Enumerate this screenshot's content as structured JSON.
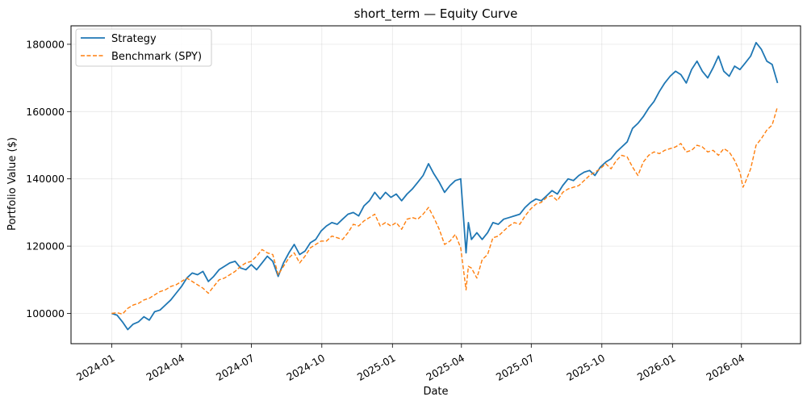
{
  "chart_data": {
    "type": "line",
    "title": "short_term — Equity Curve",
    "xlabel": "Date",
    "ylabel": "Portfolio Value ($)",
    "x_range": [
      "2023-11-09",
      "2026-06-17"
    ],
    "ylim": [
      91000,
      185500
    ],
    "x_ticks": [
      "2024-01",
      "2024-04",
      "2024-07",
      "2024-10",
      "2025-01",
      "2025-04",
      "2025-07",
      "2025-10",
      "2026-01",
      "2026-04"
    ],
    "y_ticks": [
      100000,
      120000,
      140000,
      160000,
      180000
    ],
    "y_tick_labels": [
      "100000",
      "120000",
      "140000",
      "160000",
      "180000"
    ],
    "grid": true,
    "legend_position": "top-left",
    "series": [
      {
        "name": "Strategy",
        "color": "#1f77b4",
        "style": "solid",
        "points": [
          [
            "2024-01-01",
            100000
          ],
          [
            "2024-01-08",
            99500
          ],
          [
            "2024-01-15",
            97500
          ],
          [
            "2024-01-22",
            95200
          ],
          [
            "2024-01-29",
            96800
          ],
          [
            "2024-02-05",
            97500
          ],
          [
            "2024-02-12",
            99000
          ],
          [
            "2024-02-19",
            98000
          ],
          [
            "2024-02-26",
            100500
          ],
          [
            "2024-03-04",
            101000
          ],
          [
            "2024-03-11",
            102500
          ],
          [
            "2024-03-18",
            104000
          ],
          [
            "2024-03-25",
            106000
          ],
          [
            "2024-04-01",
            108000
          ],
          [
            "2024-04-08",
            110500
          ],
          [
            "2024-04-15",
            112000
          ],
          [
            "2024-04-22",
            111500
          ],
          [
            "2024-04-29",
            112500
          ],
          [
            "2024-05-06",
            109500
          ],
          [
            "2024-05-13",
            111000
          ],
          [
            "2024-05-20",
            113000
          ],
          [
            "2024-05-27",
            114000
          ],
          [
            "2024-06-03",
            115000
          ],
          [
            "2024-06-10",
            115500
          ],
          [
            "2024-06-17",
            113500
          ],
          [
            "2024-06-24",
            113000
          ],
          [
            "2024-07-01",
            114500
          ],
          [
            "2024-07-08",
            113000
          ],
          [
            "2024-07-15",
            115000
          ],
          [
            "2024-07-22",
            117000
          ],
          [
            "2024-07-29",
            115500
          ],
          [
            "2024-08-05",
            111000
          ],
          [
            "2024-08-12",
            115000
          ],
          [
            "2024-08-19",
            118000
          ],
          [
            "2024-08-26",
            120500
          ],
          [
            "2024-09-02",
            117500
          ],
          [
            "2024-09-09",
            118500
          ],
          [
            "2024-09-16",
            121000
          ],
          [
            "2024-09-23",
            122000
          ],
          [
            "2024-09-30",
            124500
          ],
          [
            "2024-10-07",
            126000
          ],
          [
            "2024-10-14",
            127000
          ],
          [
            "2024-10-21",
            126500
          ],
          [
            "2024-10-28",
            128000
          ],
          [
            "2024-11-04",
            129500
          ],
          [
            "2024-11-11",
            130000
          ],
          [
            "2024-11-18",
            129000
          ],
          [
            "2024-11-25",
            132000
          ],
          [
            "2024-12-02",
            133500
          ],
          [
            "2024-12-09",
            136000
          ],
          [
            "2024-12-16",
            134000
          ],
          [
            "2024-12-23",
            136000
          ],
          [
            "2024-12-30",
            134500
          ],
          [
            "2025-01-06",
            135500
          ],
          [
            "2025-01-13",
            133500
          ],
          [
            "2025-01-20",
            135500
          ],
          [
            "2025-01-27",
            137000
          ],
          [
            "2025-02-03",
            139000
          ],
          [
            "2025-02-10",
            141000
          ],
          [
            "2025-02-17",
            144500
          ],
          [
            "2025-02-24",
            141500
          ],
          [
            "2025-03-03",
            139000
          ],
          [
            "2025-03-10",
            136000
          ],
          [
            "2025-03-17",
            138000
          ],
          [
            "2025-03-24",
            139500
          ],
          [
            "2025-03-31",
            140000
          ],
          [
            "2025-04-07",
            118000
          ],
          [
            "2025-04-10",
            127000
          ],
          [
            "2025-04-14",
            122000
          ],
          [
            "2025-04-21",
            124000
          ],
          [
            "2025-04-28",
            122000
          ],
          [
            "2025-05-05",
            124000
          ],
          [
            "2025-05-12",
            127000
          ],
          [
            "2025-05-19",
            126500
          ],
          [
            "2025-05-26",
            128000
          ],
          [
            "2025-06-02",
            128500
          ],
          [
            "2025-06-09",
            129000
          ],
          [
            "2025-06-16",
            129500
          ],
          [
            "2025-06-23",
            131500
          ],
          [
            "2025-06-30",
            133000
          ],
          [
            "2025-07-07",
            134000
          ],
          [
            "2025-07-14",
            133500
          ],
          [
            "2025-07-21",
            135000
          ],
          [
            "2025-07-28",
            136500
          ],
          [
            "2025-08-04",
            135500
          ],
          [
            "2025-08-11",
            138000
          ],
          [
            "2025-08-18",
            140000
          ],
          [
            "2025-08-25",
            139500
          ],
          [
            "2025-09-01",
            141000
          ],
          [
            "2025-09-08",
            142000
          ],
          [
            "2025-09-15",
            142500
          ],
          [
            "2025-09-22",
            141000
          ],
          [
            "2025-09-29",
            143500
          ],
          [
            "2025-10-06",
            145000
          ],
          [
            "2025-10-13",
            146000
          ],
          [
            "2025-10-20",
            148000
          ],
          [
            "2025-10-27",
            149500
          ],
          [
            "2025-11-03",
            151000
          ],
          [
            "2025-11-10",
            155000
          ],
          [
            "2025-11-17",
            156500
          ],
          [
            "2025-11-24",
            158500
          ],
          [
            "2025-12-01",
            161000
          ],
          [
            "2025-12-08",
            163000
          ],
          [
            "2025-12-15",
            166000
          ],
          [
            "2025-12-22",
            168500
          ],
          [
            "2025-12-29",
            170500
          ],
          [
            "2026-01-05",
            172000
          ],
          [
            "2026-01-12",
            171000
          ],
          [
            "2026-01-19",
            168500
          ],
          [
            "2026-01-26",
            172500
          ],
          [
            "2026-02-02",
            175000
          ],
          [
            "2026-02-09",
            172000
          ],
          [
            "2026-02-16",
            170000
          ],
          [
            "2026-02-23",
            173000
          ],
          [
            "2026-03-02",
            176500
          ],
          [
            "2026-03-09",
            172000
          ],
          [
            "2026-03-16",
            170500
          ],
          [
            "2026-03-23",
            173500
          ],
          [
            "2026-03-30",
            172500
          ],
          [
            "2026-04-06",
            174500
          ],
          [
            "2026-04-13",
            176500
          ],
          [
            "2026-04-20",
            180500
          ],
          [
            "2026-04-27",
            178500
          ],
          [
            "2026-05-04",
            175000
          ],
          [
            "2026-05-11",
            174000
          ],
          [
            "2026-05-18",
            168500
          ]
        ]
      },
      {
        "name": "Benchmark (SPY)",
        "color": "#ff7f0e",
        "style": "dashed",
        "points": [
          [
            "2024-01-01",
            100000
          ],
          [
            "2024-01-08",
            100200
          ],
          [
            "2024-01-15",
            99800
          ],
          [
            "2024-01-22",
            101500
          ],
          [
            "2024-01-29",
            102500
          ],
          [
            "2024-02-05",
            103000
          ],
          [
            "2024-02-12",
            104000
          ],
          [
            "2024-02-19",
            104500
          ],
          [
            "2024-02-26",
            105500
          ],
          [
            "2024-03-04",
            106500
          ],
          [
            "2024-03-11",
            107000
          ],
          [
            "2024-03-18",
            108000
          ],
          [
            "2024-03-25",
            108500
          ],
          [
            "2024-04-01",
            109500
          ],
          [
            "2024-04-08",
            110500
          ],
          [
            "2024-04-15",
            109500
          ],
          [
            "2024-04-22",
            108500
          ],
          [
            "2024-04-29",
            107500
          ],
          [
            "2024-05-06",
            106000
          ],
          [
            "2024-05-13",
            108000
          ],
          [
            "2024-05-20",
            110000
          ],
          [
            "2024-05-27",
            110500
          ],
          [
            "2024-06-03",
            111500
          ],
          [
            "2024-06-10",
            112500
          ],
          [
            "2024-06-17",
            114000
          ],
          [
            "2024-06-24",
            115000
          ],
          [
            "2024-07-01",
            115500
          ],
          [
            "2024-07-08",
            117000
          ],
          [
            "2024-07-15",
            119000
          ],
          [
            "2024-07-22",
            118000
          ],
          [
            "2024-07-29",
            117500
          ],
          [
            "2024-08-05",
            111500
          ],
          [
            "2024-08-12",
            114000
          ],
          [
            "2024-08-19",
            116500
          ],
          [
            "2024-08-26",
            118000
          ],
          [
            "2024-09-02",
            115000
          ],
          [
            "2024-09-09",
            117000
          ],
          [
            "2024-09-16",
            119500
          ],
          [
            "2024-09-23",
            120500
          ],
          [
            "2024-09-30",
            121500
          ],
          [
            "2024-10-07",
            121500
          ],
          [
            "2024-10-14",
            123000
          ],
          [
            "2024-10-21",
            122500
          ],
          [
            "2024-10-28",
            122000
          ],
          [
            "2024-11-04",
            124000
          ],
          [
            "2024-11-11",
            126500
          ],
          [
            "2024-11-18",
            126000
          ],
          [
            "2024-11-25",
            127500
          ],
          [
            "2024-12-02",
            128500
          ],
          [
            "2024-12-09",
            129500
          ],
          [
            "2024-12-16",
            126000
          ],
          [
            "2024-12-23",
            127000
          ],
          [
            "2024-12-30",
            126000
          ],
          [
            "2025-01-06",
            127000
          ],
          [
            "2025-01-13",
            125000
          ],
          [
            "2025-01-20",
            128000
          ],
          [
            "2025-01-27",
            128500
          ],
          [
            "2025-02-03",
            128000
          ],
          [
            "2025-02-10",
            129500
          ],
          [
            "2025-02-17",
            131500
          ],
          [
            "2025-02-24",
            128500
          ],
          [
            "2025-03-03",
            125000
          ],
          [
            "2025-03-10",
            120500
          ],
          [
            "2025-03-17",
            121500
          ],
          [
            "2025-03-24",
            123500
          ],
          [
            "2025-03-31",
            119500
          ],
          [
            "2025-04-07",
            107000
          ],
          [
            "2025-04-10",
            114000
          ],
          [
            "2025-04-14",
            113500
          ],
          [
            "2025-04-21",
            110500
          ],
          [
            "2025-04-28",
            116000
          ],
          [
            "2025-05-05",
            117500
          ],
          [
            "2025-05-12",
            122500
          ],
          [
            "2025-05-19",
            123000
          ],
          [
            "2025-05-26",
            124500
          ],
          [
            "2025-06-02",
            126000
          ],
          [
            "2025-06-09",
            127000
          ],
          [
            "2025-06-16",
            126500
          ],
          [
            "2025-06-23",
            129000
          ],
          [
            "2025-06-30",
            131000
          ],
          [
            "2025-07-07",
            132500
          ],
          [
            "2025-07-14",
            133000
          ],
          [
            "2025-07-21",
            134500
          ],
          [
            "2025-07-28",
            135000
          ],
          [
            "2025-08-04",
            133500
          ],
          [
            "2025-08-11",
            136000
          ],
          [
            "2025-08-18",
            137000
          ],
          [
            "2025-08-25",
            137500
          ],
          [
            "2025-09-01",
            138000
          ],
          [
            "2025-09-08",
            139500
          ],
          [
            "2025-09-15",
            141000
          ],
          [
            "2025-09-22",
            142000
          ],
          [
            "2025-09-29",
            143000
          ],
          [
            "2025-10-06",
            144500
          ],
          [
            "2025-10-13",
            143000
          ],
          [
            "2025-10-20",
            145500
          ],
          [
            "2025-10-27",
            147000
          ],
          [
            "2025-11-03",
            146500
          ],
          [
            "2025-11-10",
            143500
          ],
          [
            "2025-11-17",
            141000
          ],
          [
            "2025-11-24",
            145000
          ],
          [
            "2025-12-01",
            147000
          ],
          [
            "2025-12-08",
            148000
          ],
          [
            "2025-12-15",
            147500
          ],
          [
            "2025-12-22",
            148500
          ],
          [
            "2025-12-29",
            149000
          ],
          [
            "2026-01-05",
            149500
          ],
          [
            "2026-01-12",
            150500
          ],
          [
            "2026-01-19",
            148000
          ],
          [
            "2026-01-26",
            148500
          ],
          [
            "2026-02-02",
            150000
          ],
          [
            "2026-02-09",
            149500
          ],
          [
            "2026-02-16",
            148000
          ],
          [
            "2026-02-23",
            148500
          ],
          [
            "2026-03-02",
            147000
          ],
          [
            "2026-03-09",
            149000
          ],
          [
            "2026-03-16",
            148000
          ],
          [
            "2026-03-23",
            145500
          ],
          [
            "2026-03-30",
            142000
          ],
          [
            "2026-04-03",
            137500
          ],
          [
            "2026-04-06",
            139000
          ],
          [
            "2026-04-13",
            143000
          ],
          [
            "2026-04-20",
            150000
          ],
          [
            "2026-04-27",
            152000
          ],
          [
            "2026-05-04",
            154500
          ],
          [
            "2026-05-11",
            156000
          ],
          [
            "2026-05-18",
            161500
          ]
        ]
      }
    ]
  }
}
